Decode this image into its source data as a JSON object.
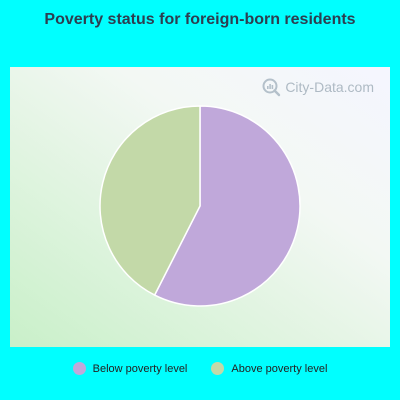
{
  "title": "Poverty status for foreign-born residents",
  "watermark": {
    "text": "City-Data.com",
    "icon": "magnifier-icon"
  },
  "chart_data": {
    "type": "pie",
    "title": "Poverty status for foreign-born residents",
    "slices": [
      {
        "label": "Below poverty level",
        "value": 57.5,
        "color": "#c0a8da"
      },
      {
        "label": "Above poverty level",
        "value": 42.5,
        "color": "#c3d9a8"
      }
    ],
    "legend_position": "bottom"
  }
}
